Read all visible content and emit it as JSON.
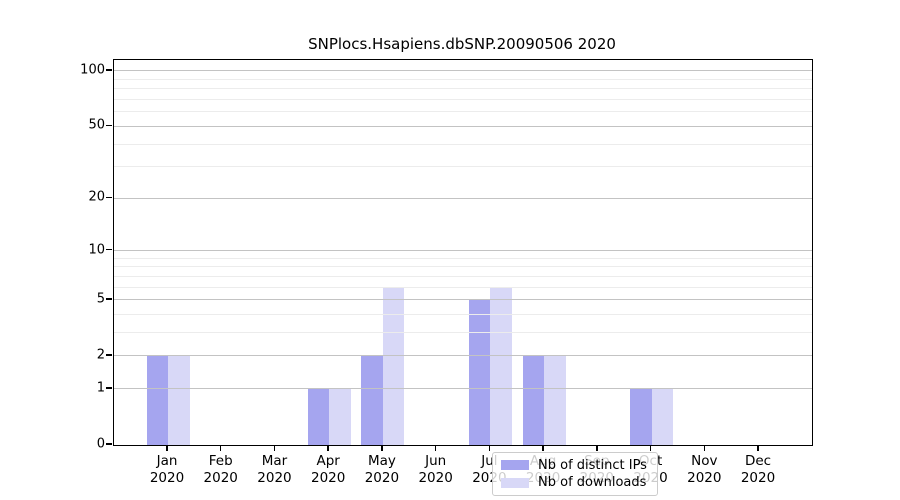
{
  "chart_data": {
    "type": "bar",
    "title": "SNPlocs.Hsapiens.dbSNP.20090506 2020",
    "x_axis": {
      "months": [
        "Jan",
        "Feb",
        "Mar",
        "Apr",
        "May",
        "Jun",
        "Jul",
        "Aug",
        "Sep",
        "Oct",
        "Nov",
        "Dec"
      ],
      "year": "2020"
    },
    "y_axis": {
      "scale": "log1p",
      "ticks": [
        0,
        1,
        2,
        5,
        10,
        20,
        50,
        100
      ],
      "minor_gridlines": [
        3,
        4,
        6,
        7,
        8,
        9,
        30,
        40,
        60,
        70,
        80,
        90
      ],
      "ylim": [
        0,
        115
      ]
    },
    "series": [
      {
        "name": "Nb of distinct IPs",
        "color": "#a5a5ef",
        "values": [
          2,
          0,
          0,
          1,
          2,
          0,
          5,
          2,
          0,
          1,
          0,
          0
        ]
      },
      {
        "name": "Nb of downloads",
        "color": "#d8d8f7",
        "values": [
          2,
          0,
          0,
          1,
          6,
          0,
          6,
          2,
          0,
          1,
          0,
          0
        ]
      }
    ],
    "legend_position": "lower center, inside plot",
    "grid": true
  }
}
